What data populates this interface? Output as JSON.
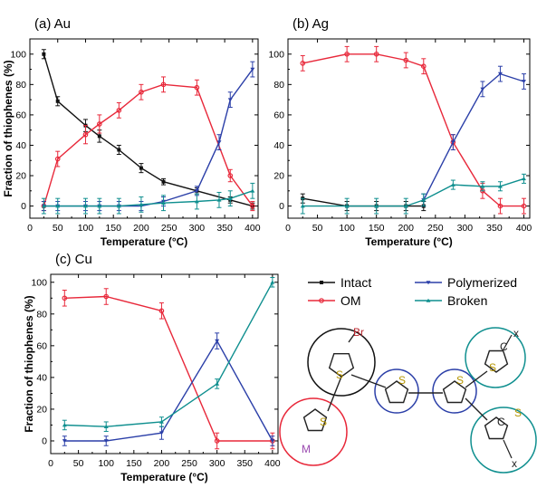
{
  "chart_data": [
    {
      "type": "line",
      "title": "(a) Au",
      "xlabel": "Temperature (°C)",
      "ylabel": "Fraction of thiophenes (%)",
      "xlim": [
        0,
        410
      ],
      "ylim": [
        -8,
        110
      ],
      "xticks": [
        "0",
        "50",
        "100",
        "150",
        "200",
        "250",
        "300",
        "350",
        "400"
      ],
      "yticks": [
        "0",
        "20",
        "40",
        "60",
        "80",
        "100"
      ],
      "series": [
        {
          "name": "Intact",
          "color": "#111111",
          "x": [
            25,
            50,
            100,
            125,
            160,
            200,
            240,
            300,
            360,
            400
          ],
          "y": [
            100,
            69,
            53,
            46,
            37,
            25,
            16,
            10,
            4,
            0
          ],
          "err": [
            3,
            3,
            4,
            4,
            3,
            3,
            2,
            2,
            2,
            2
          ]
        },
        {
          "name": "OM",
          "color": "#e8283a",
          "x": [
            25,
            50,
            100,
            125,
            160,
            200,
            240,
            300,
            360,
            400
          ],
          "y": [
            0,
            31,
            47,
            54,
            63,
            75,
            80,
            78,
            20,
            0
          ],
          "err": [
            3,
            5,
            6,
            6,
            5,
            5,
            5,
            5,
            4,
            3
          ]
        },
        {
          "name": "Polymerized",
          "color": "#2b3fa8",
          "x": [
            25,
            50,
            100,
            125,
            160,
            200,
            240,
            300,
            340,
            360,
            400
          ],
          "y": [
            0,
            0,
            0,
            0,
            0,
            0,
            3,
            10,
            42,
            70,
            90
          ],
          "err": [
            3,
            3,
            3,
            3,
            3,
            3,
            3,
            3,
            5,
            5,
            5
          ]
        },
        {
          "name": "Broken",
          "color": "#0f8f8f",
          "x": [
            25,
            50,
            100,
            125,
            160,
            200,
            240,
            300,
            340,
            360,
            400
          ],
          "y": [
            0,
            0,
            0,
            0,
            0,
            1,
            2,
            3,
            4,
            5,
            10
          ],
          "err": [
            5,
            5,
            5,
            5,
            5,
            5,
            5,
            5,
            5,
            5,
            5
          ]
        }
      ]
    },
    {
      "type": "line",
      "title": "(b) Ag",
      "xlabel": "Temperature (°C)",
      "ylabel": "",
      "xlim": [
        0,
        410
      ],
      "ylim": [
        -8,
        110
      ],
      "xticks": [
        "0",
        "50",
        "100",
        "150",
        "200",
        "250",
        "300",
        "350",
        "400"
      ],
      "yticks": [
        "0",
        "20",
        "40",
        "60",
        "80",
        "100"
      ],
      "series": [
        {
          "name": "Intact",
          "color": "#111111",
          "x": [
            25,
            100,
            150,
            200,
            230
          ],
          "y": [
            5,
            0,
            0,
            0,
            0
          ],
          "err": [
            3,
            3,
            3,
            3,
            3
          ]
        },
        {
          "name": "OM",
          "color": "#e8283a",
          "x": [
            25,
            100,
            150,
            200,
            230,
            280,
            330,
            360,
            400
          ],
          "y": [
            94,
            100,
            100,
            96,
            92,
            42,
            10,
            0,
            0
          ],
          "err": [
            5,
            5,
            5,
            5,
            5,
            5,
            5,
            5,
            5
          ]
        },
        {
          "name": "Polymerized",
          "color": "#2b3fa8",
          "x": [
            230,
            280,
            330,
            360,
            400
          ],
          "y": [
            4,
            42,
            77,
            87,
            82
          ],
          "err": [
            4,
            5,
            5,
            5,
            5
          ]
        },
        {
          "name": "Broken",
          "color": "#0f8f8f",
          "x": [
            25,
            100,
            150,
            200,
            230,
            280,
            330,
            360,
            400
          ],
          "y": [
            0,
            0,
            0,
            0,
            4,
            14,
            13,
            13,
            18
          ],
          "err": [
            5,
            5,
            5,
            5,
            4,
            3,
            3,
            3,
            3
          ]
        }
      ]
    },
    {
      "type": "line",
      "title": "(c) Cu",
      "xlabel": "Temperature (°C)",
      "ylabel": "Fraction of thiophenes (%)",
      "xlim": [
        0,
        410
      ],
      "ylim": [
        -8,
        105
      ],
      "xticks": [
        "0",
        "50",
        "100",
        "150",
        "200",
        "250",
        "300",
        "350",
        "400"
      ],
      "yticks": [
        "0",
        "20",
        "40",
        "60",
        "80",
        "100"
      ],
      "series": [
        {
          "name": "OM",
          "color": "#e8283a",
          "x": [
            25,
            100,
            200,
            300,
            400
          ],
          "y": [
            90,
            91,
            82,
            0,
            0
          ],
          "err": [
            5,
            5,
            5,
            5,
            5
          ]
        },
        {
          "name": "Polymerized",
          "color": "#2b3fa8",
          "x": [
            25,
            100,
            200,
            300,
            400
          ],
          "y": [
            0,
            0,
            5,
            63,
            0
          ],
          "err": [
            3,
            3,
            4,
            5,
            3
          ]
        },
        {
          "name": "Broken",
          "color": "#0f8f8f",
          "x": [
            25,
            100,
            200,
            300,
            400
          ],
          "y": [
            10,
            9,
            12,
            36,
            100
          ],
          "err": [
            3,
            3,
            3,
            3,
            3
          ]
        }
      ]
    }
  ],
  "legend": [
    {
      "label": "Intact",
      "color": "#111111"
    },
    {
      "label": "Polymerized",
      "color": "#2b3fa8"
    },
    {
      "label": "OM",
      "color": "#e8283a"
    },
    {
      "label": "Broken",
      "color": "#0f8f8f"
    }
  ],
  "molecule": {
    "labels": [
      "Br",
      "S",
      "S",
      "S",
      "S",
      "S",
      "S",
      "M",
      "C",
      "C",
      "x",
      "x"
    ],
    "circle_colors": [
      "#111111",
      "#2b3fa8",
      "#2b3fa8",
      "#0f8f8f",
      "#0f8f8f",
      "#e8283a"
    ]
  }
}
